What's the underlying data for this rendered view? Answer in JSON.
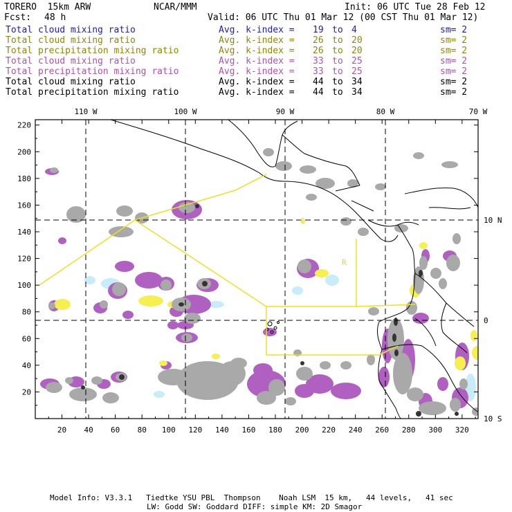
{
  "header": {
    "model": "TORERO  15km ARW",
    "org": "NCAR/MMM",
    "init": "Init: 06 UTC Tue 28 Feb 12",
    "fcst_label": "Fcst:",
    "fcst_value": "48 h",
    "valid": "Valid: 06 UTC Thu 01 Mar 12 (00 CST Thu 01 Mar 12)"
  },
  "legend": [
    {
      "field": "Total cloud mixing ratio",
      "index": "Avg. k-index =",
      "from": "19",
      "to_word": "to",
      "to": "4",
      "sm": "sm= 2",
      "color": "#1a1ad0"
    },
    {
      "field": "Total cloud mixing ratio",
      "index": "Avg. k-index =",
      "from": "26",
      "to_word": "to",
      "to": "20",
      "sm": "sm= 2",
      "color": "#8a8a00"
    },
    {
      "field": "Total precipitation mixing ratio",
      "index": "Avg. k-index =",
      "from": "26",
      "to_word": "to",
      "to": "20",
      "sm": "sm= 2",
      "color": "#8a8a00"
    },
    {
      "field": "Total cloud mixing ratio",
      "index": "Avg. k-index =",
      "from": "33",
      "to_word": "to",
      "to": "25",
      "sm": "sm= 2",
      "color": "#b050b0"
    },
    {
      "field": "Total precipitation mixing ratio",
      "index": "Avg. k-index =",
      "from": "33",
      "to_word": "to",
      "to": "25",
      "sm": "sm= 2",
      "color": "#b050b0"
    },
    {
      "field": "Total cloud mixing ratio",
      "index": "Avg. k-index =",
      "from": "44",
      "to_word": "to",
      "to": "34",
      "sm": "sm= 2",
      "color": "#000000"
    },
    {
      "field": "Total precipitation mixing ratio",
      "index": "Avg. k-index =",
      "from": "44",
      "to_word": "to",
      "to": "34",
      "sm": "sm= 2",
      "color": "#000000"
    }
  ],
  "map": {
    "top_labels": [
      "110 W",
      "100 W",
      "90 W",
      "80 W",
      "70 W"
    ],
    "right_labels": [
      "10 N",
      "0",
      "10 S"
    ],
    "y_ticks": [
      "220",
      "200",
      "180",
      "160",
      "140",
      "120",
      "100",
      "80",
      "60",
      "40",
      "20"
    ],
    "x_ticks": [
      "20",
      "40",
      "60",
      "80",
      "100",
      "120",
      "140",
      "160",
      "180",
      "200",
      "220",
      "240",
      "260",
      "280",
      "300",
      "320"
    ],
    "region_letter": "C",
    "region_letter_2": "R",
    "colors": {
      "land_outline": "#000000",
      "grid": "#000000",
      "domain_box": "#f0e020",
      "shade_gray": "#a9a9a9",
      "shade_dark": "#333333",
      "shade_purple": "#b060c0",
      "shade_yellow": "#f5f050",
      "shade_cyan": "#c8ecf8"
    }
  },
  "footer": {
    "line1": "Model Info: V3.3.1   Tiedtke YSU PBL  Thompson    Noah LSM  15 km,   44 levels,   41 sec",
    "line2": "LW: Godd SW: Goddard DIFF: simple KM: 2D Smagor"
  }
}
